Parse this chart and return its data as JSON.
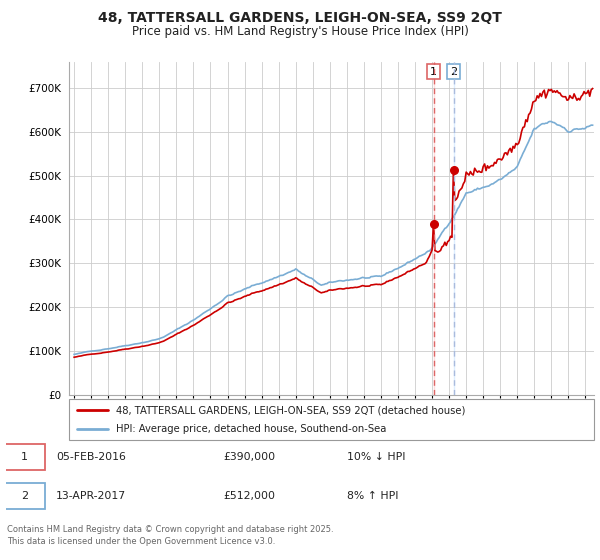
{
  "title": "48, TATTERSALL GARDENS, LEIGH-ON-SEA, SS9 2QT",
  "subtitle": "Price paid vs. HM Land Registry's House Price Index (HPI)",
  "legend_line1": "48, TATTERSALL GARDENS, LEIGH-ON-SEA, SS9 2QT (detached house)",
  "legend_line2": "HPI: Average price, detached house, Southend-on-Sea",
  "footer": "Contains HM Land Registry data © Crown copyright and database right 2025.\nThis data is licensed under the Open Government Licence v3.0.",
  "transactions": [
    {
      "label": "1",
      "date": "05-FEB-2016",
      "price": "£390,000",
      "hpi": "10% ↓ HPI"
    },
    {
      "label": "2",
      "date": "13-APR-2017",
      "price": "£512,000",
      "hpi": "8% ↑ HPI"
    }
  ],
  "vline1_x": 2016.09,
  "vline2_x": 2017.27,
  "marker1_price": 390000,
  "marker2_price": 512000,
  "ylim": [
    0,
    760000
  ],
  "yticks": [
    0,
    100000,
    200000,
    300000,
    400000,
    500000,
    600000,
    700000
  ],
  "background_color": "#ffffff",
  "grid_color": "#cccccc",
  "line_color_price": "#cc0000",
  "line_color_hpi": "#7aadd4",
  "vline1_color": "#dd6666",
  "vline2_color": "#aabbdd",
  "shade1_color": "#ffdddd",
  "shade2_color": "#ddeeff",
  "xtick_years": [
    1995,
    1996,
    1997,
    1998,
    1999,
    2000,
    2001,
    2002,
    2003,
    2004,
    2005,
    2006,
    2007,
    2008,
    2009,
    2010,
    2011,
    2012,
    2013,
    2014,
    2015,
    2016,
    2017,
    2018,
    2019,
    2020,
    2021,
    2022,
    2023,
    2024,
    2025
  ]
}
